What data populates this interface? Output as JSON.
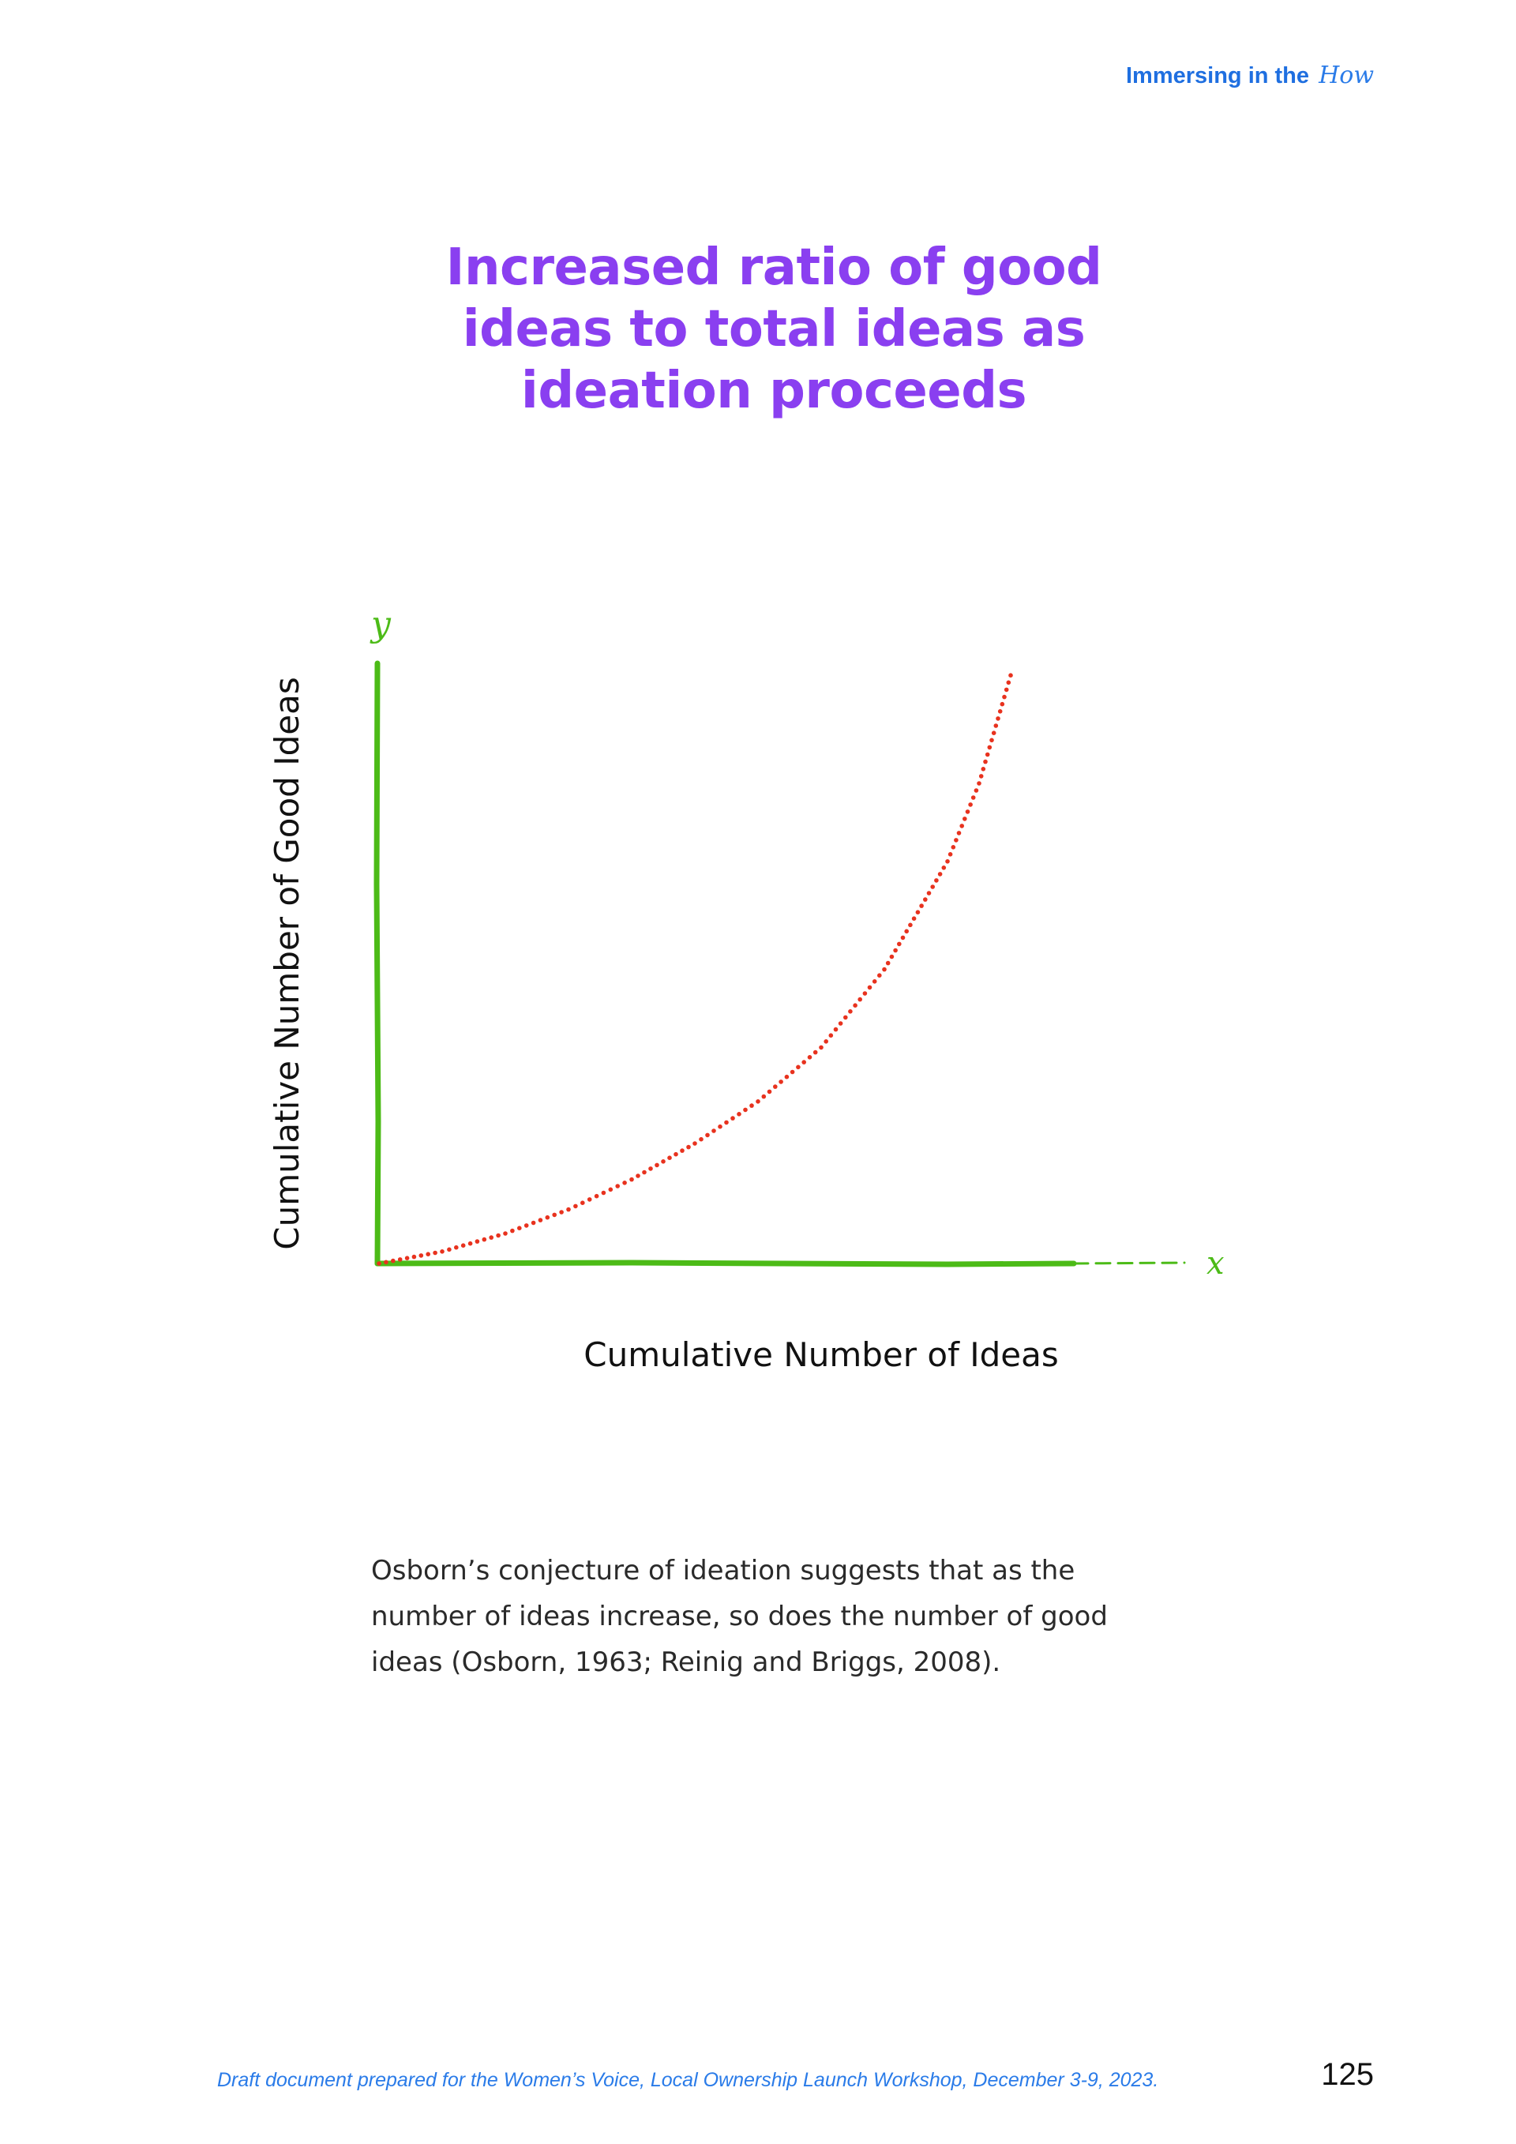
{
  "header": {
    "section": "Immersing in the",
    "section_accent": "How"
  },
  "title": "Increased ratio of good ideas to total ideas as ideation proceeds",
  "chart_data": {
    "type": "line",
    "title": "",
    "xlabel": "Cumulative Number of Ideas",
    "ylabel": "Cumulative Number of Good Ideas",
    "x_axis_letter": "x",
    "y_axis_letter": "y",
    "xlim": [
      0,
      1
    ],
    "ylim": [
      0,
      1
    ],
    "grid": false,
    "series": [
      {
        "style": "dotted",
        "x": [
          0,
          0.1,
          0.2,
          0.3,
          0.4,
          0.5,
          0.6,
          0.7,
          0.8,
          0.9,
          0.95,
          1.0
        ],
        "y": [
          0,
          0.02,
          0.05,
          0.09,
          0.14,
          0.2,
          0.27,
          0.36,
          0.49,
          0.67,
          0.8,
          0.98
        ]
      }
    ],
    "colors": {
      "axis": "#4cbb17",
      "curve": "#e8321e",
      "label": "#111111"
    }
  },
  "caption": "Osborn’s conjecture of ideation suggests that as the number of ideas increase, so does the number of good ideas (Osborn, 1963; Reinig and Briggs, 2008).",
  "footer": {
    "note": "Draft document prepared for the Women’s Voice, Local Ownership Launch Workshop, December 3-9, 2023.",
    "page_number": "125"
  }
}
